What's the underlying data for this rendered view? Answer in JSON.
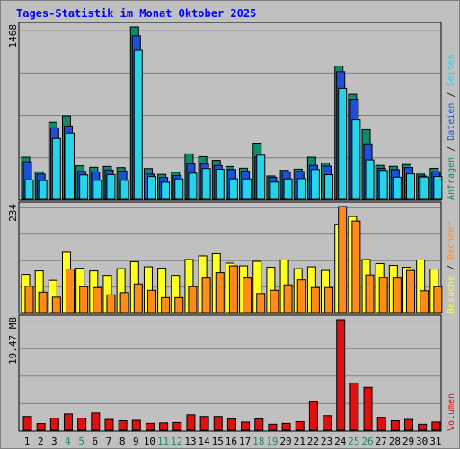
{
  "title": "Tages-Statistik im Monat Oktober 2025",
  "chart_data": {
    "type": "bar",
    "title": "Tages-Statistik im Monat Oktober 2025",
    "x": [
      "1",
      "2",
      "3",
      "4",
      "5",
      "6",
      "7",
      "8",
      "9",
      "10",
      "11",
      "12",
      "13",
      "14",
      "15",
      "16",
      "17",
      "18",
      "19",
      "20",
      "21",
      "22",
      "23",
      "24",
      "25",
      "26",
      "27",
      "28",
      "29",
      "30",
      "31"
    ],
    "weekend_days": [
      "4",
      "5",
      "11",
      "12",
      "18",
      "19",
      "25",
      "26"
    ],
    "colors": {
      "anfragen": "#108a6a",
      "dateien": "#1f4fd8",
      "seiten": "#26d4ea",
      "besuche": "#ffff22",
      "rechner": "#ff8c1a",
      "volumen": "#e01010",
      "weekday_label": "#000000",
      "weekend_label": "#208a60",
      "background": "#c0c0c0",
      "title": "#0000ff"
    },
    "panels": [
      {
        "name": "top",
        "ymax_label": "1468",
        "ylim": [
          0,
          1468
        ],
        "side_labels": [
          {
            "text": "Anfragen",
            "color": "#108a6a"
          },
          {
            "text": "Dateien",
            "color": "#1f4fd8"
          },
          {
            "text": "Seiten",
            "color": "#26d4ea"
          }
        ],
        "series": [
          {
            "name": "Anfragen",
            "values": [
              359,
              234,
              656,
              711,
              286,
              273,
              280,
              270,
              1468,
              262,
              213,
              231,
              387,
              364,
              332,
              280,
              265,
              478,
              199,
              247,
              257,
              359,
              309,
              1135,
              894,
              593,
              289,
              281,
              297,
              215,
              264
            ]
          },
          {
            "name": "Dateien",
            "values": [
              320,
              215,
              609,
              624,
              238,
              234,
              250,
              241,
              1393,
              215,
              186,
              202,
              301,
              301,
              288,
              254,
              240,
              362,
              187,
              234,
              237,
              289,
              283,
              1087,
              852,
              472,
              264,
              253,
              271,
              198,
              235
            ]
          },
          {
            "name": "Seiten",
            "values": [
              166,
              160,
              518,
              564,
              208,
              162,
              211,
              162,
              1269,
              194,
              146,
              174,
              223,
              262,
              256,
              175,
              174,
              376,
              147,
              174,
              177,
              254,
              210,
              945,
              676,
              336,
              246,
              189,
              217,
              190,
              195
            ]
          }
        ]
      },
      {
        "name": "middle",
        "ymax_label": "234",
        "ylim": [
          0,
          234
        ],
        "side_labels": [
          {
            "text": "Besuche",
            "color": "#ffff22"
          },
          {
            "text": "Rechner",
            "color": "#ff8c1a"
          }
        ],
        "series": [
          {
            "name": "Besuche",
            "values": [
              84,
              92,
              71,
              133,
              98,
              92,
              82,
              97,
              112,
              101,
              98,
              82,
              117,
              125,
              130,
              109,
              103,
              113,
              100,
              116,
              97,
              101,
              93,
              195,
              212,
              117,
              108,
              104,
              100,
              116,
              96
            ]
          },
          {
            "name": "Rechner",
            "values": [
              58,
              45,
              34,
              96,
              57,
              55,
              39,
              44,
              63,
              49,
              33,
              33,
              57,
              76,
              88,
              103,
              76,
              42,
              49,
              61,
              72,
              55,
              55,
              234,
              202,
              83,
              77,
              76,
              93,
              48,
              57
            ]
          }
        ]
      },
      {
        "name": "bottom",
        "ymax_label": "19.47 MB",
        "ylim": [
          0,
          19.47
        ],
        "side_labels": [
          {
            "text": "Volumen",
            "color": "#e01010"
          }
        ],
        "series": [
          {
            "name": "Volumen",
            "values": [
              2.42,
              1.18,
              2.12,
              2.87,
              2.12,
              3.03,
              1.89,
              1.66,
              1.74,
              1.21,
              1.29,
              1.36,
              2.72,
              2.42,
              2.42,
              1.97,
              1.44,
              1.97,
              1.06,
              1.21,
              1.51,
              4.99,
              2.57,
              19.47,
              8.32,
              7.56,
              2.27,
              1.66,
              1.89,
              1.06,
              1.44
            ]
          }
        ]
      }
    ]
  }
}
